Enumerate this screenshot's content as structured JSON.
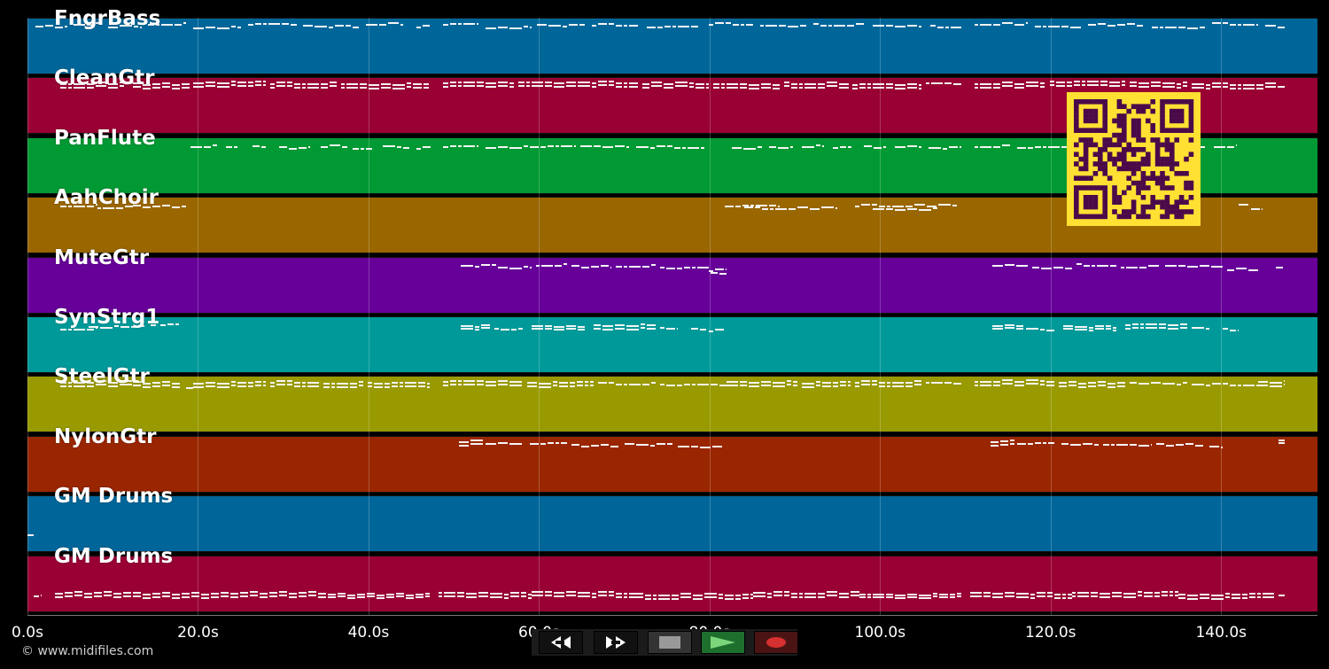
{
  "app": {
    "copyright": "© www.midifiles.com"
  },
  "tracks": [
    {
      "name": "FngrBass",
      "color": "#006699",
      "notes": [
        [
          40,
          76,
          8
        ],
        [
          83,
          115,
          5
        ],
        [
          122,
          160,
          8
        ],
        [
          167,
          210,
          5
        ],
        [
          218,
          272,
          9
        ],
        [
          280,
          335,
          6
        ],
        [
          342,
          405,
          8
        ],
        [
          413,
          455,
          5
        ],
        [
          470,
          485,
          8
        ],
        [
          500,
          540,
          5
        ],
        [
          548,
          600,
          9
        ],
        [
          606,
          660,
          7
        ],
        [
          668,
          720,
          6
        ],
        [
          730,
          790,
          9
        ],
        [
          800,
          850,
          5
        ],
        [
          858,
          910,
          8
        ],
        [
          918,
          975,
          6
        ],
        [
          985,
          1040,
          7
        ],
        [
          1050,
          1085,
          8
        ],
        [
          1100,
          1160,
          5
        ],
        [
          1168,
          1220,
          8
        ],
        [
          1228,
          1290,
          6
        ],
        [
          1300,
          1360,
          9
        ],
        [
          1368,
          1420,
          5
        ],
        [
          1428,
          1450,
          8
        ]
      ]
    },
    {
      "name": "CleanGtr",
      "color": "#990033",
      "notes": [
        [
          68,
          140,
          5
        ],
        [
          68,
          140,
          9
        ],
        [
          150,
          215,
          6
        ],
        [
          150,
          215,
          10
        ],
        [
          218,
          300,
          4
        ],
        [
          218,
          300,
          8
        ],
        [
          305,
          380,
          5
        ],
        [
          305,
          380,
          9
        ],
        [
          385,
          485,
          6
        ],
        [
          385,
          485,
          10
        ],
        [
          500,
          580,
          4
        ],
        [
          500,
          580,
          8
        ],
        [
          585,
          650,
          5
        ],
        [
          585,
          650,
          9
        ],
        [
          652,
          720,
          4
        ],
        [
          652,
          720,
          8
        ],
        [
          725,
          800,
          5
        ],
        [
          725,
          800,
          9
        ],
        [
          805,
          880,
          6
        ],
        [
          805,
          880,
          10
        ],
        [
          885,
          960,
          5
        ],
        [
          885,
          960,
          9
        ],
        [
          962,
          1040,
          6
        ],
        [
          962,
          1040,
          10
        ],
        [
          1045,
          1085,
          5
        ],
        [
          1100,
          1180,
          5
        ],
        [
          1100,
          1180,
          9
        ],
        [
          1185,
          1270,
          4
        ],
        [
          1185,
          1270,
          8
        ],
        [
          1275,
          1340,
          5
        ],
        [
          1275,
          1340,
          9
        ],
        [
          1345,
          1440,
          6
        ],
        [
          1345,
          1440,
          10
        ],
        [
          1442,
          1450,
          8
        ]
      ]
    },
    {
      "name": "PanFlute",
      "color": "#009933",
      "notes": [
        [
          215,
          245,
          8
        ],
        [
          255,
          270,
          10
        ],
        [
          285,
          300,
          9
        ],
        [
          315,
          350,
          10
        ],
        [
          362,
          392,
          8
        ],
        [
          398,
          420,
          10
        ],
        [
          432,
          462,
          9
        ],
        [
          470,
          486,
          10
        ],
        [
          500,
          540,
          8
        ],
        [
          548,
          650,
          9
        ],
        [
          655,
          710,
          8
        ],
        [
          718,
          795,
          9
        ],
        [
          826,
          860,
          10
        ],
        [
          868,
          895,
          9
        ],
        [
          905,
          930,
          8
        ],
        [
          940,
          962,
          10
        ],
        [
          975,
          1000,
          9
        ],
        [
          1010,
          1040,
          8
        ],
        [
          1048,
          1085,
          10
        ],
        [
          1100,
          1140,
          8
        ],
        [
          1148,
          1230,
          9
        ],
        [
          1236,
          1290,
          8
        ],
        [
          1300,
          1360,
          9
        ],
        [
          1370,
          1396,
          8
        ]
      ]
    },
    {
      "name": "AahChoir",
      "color": "#996600",
      "notes": [
        [
          68,
          110,
          8
        ],
        [
          110,
          150,
          10
        ],
        [
          150,
          210,
          9
        ],
        [
          818,
          880,
          8
        ],
        [
          840,
          945,
          11
        ],
        [
          965,
          1080,
          8
        ],
        [
          985,
          1060,
          12
        ],
        [
          1398,
          1410,
          8
        ],
        [
          1412,
          1425,
          11
        ]
      ]
    },
    {
      "name": "MuteGtr",
      "color": "#660099",
      "notes": [
        [
          520,
          560,
          8
        ],
        [
          562,
          600,
          10
        ],
        [
          605,
          640,
          7
        ],
        [
          645,
          690,
          9
        ],
        [
          695,
          740,
          8
        ],
        [
          745,
          800,
          10
        ],
        [
          800,
          820,
          13
        ],
        [
          802,
          820,
          16
        ],
        [
          1120,
          1160,
          8
        ],
        [
          1165,
          1210,
          10
        ],
        [
          1215,
          1260,
          7
        ],
        [
          1265,
          1310,
          9
        ],
        [
          1315,
          1380,
          8
        ],
        [
          1385,
          1420,
          12
        ],
        [
          1440,
          1450,
          11
        ]
      ]
    },
    {
      "name": "SynStrg1",
      "color": "#009999",
      "notes": [
        [
          68,
          110,
          12
        ],
        [
          100,
          165,
          10
        ],
        [
          170,
          178,
          7
        ],
        [
          181,
          202,
          8
        ],
        [
          520,
          555,
          9
        ],
        [
          520,
          555,
          12
        ],
        [
          558,
          590,
          13
        ],
        [
          600,
          660,
          10
        ],
        [
          600,
          660,
          13
        ],
        [
          670,
          740,
          8
        ],
        [
          670,
          740,
          12
        ],
        [
          745,
          765,
          11
        ],
        [
          780,
          797,
          13
        ],
        [
          800,
          818,
          14
        ],
        [
          1120,
          1155,
          9
        ],
        [
          1120,
          1155,
          12
        ],
        [
          1158,
          1190,
          13
        ],
        [
          1200,
          1260,
          10
        ],
        [
          1200,
          1260,
          13
        ],
        [
          1270,
          1340,
          8
        ],
        [
          1270,
          1340,
          12
        ],
        [
          1345,
          1365,
          11
        ],
        [
          1380,
          1398,
          13
        ]
      ]
    },
    {
      "name": "SteelGtr",
      "color": "#999900",
      "notes": [
        [
          68,
          150,
          5
        ],
        [
          68,
          150,
          9
        ],
        [
          150,
          205,
          6
        ],
        [
          150,
          205,
          10
        ],
        [
          210,
          218,
          13
        ],
        [
          218,
          300,
          6
        ],
        [
          218,
          300,
          10
        ],
        [
          305,
          360,
          5
        ],
        [
          305,
          360,
          9
        ],
        [
          365,
          410,
          6
        ],
        [
          365,
          410,
          10
        ],
        [
          415,
          485,
          6
        ],
        [
          415,
          485,
          10
        ],
        [
          500,
          590,
          4
        ],
        [
          500,
          590,
          8
        ],
        [
          595,
          670,
          6
        ],
        [
          595,
          670,
          10
        ],
        [
          675,
          740,
          7
        ],
        [
          745,
          820,
          8
        ],
        [
          820,
          900,
          5
        ],
        [
          820,
          900,
          9
        ],
        [
          905,
          960,
          6
        ],
        [
          905,
          960,
          10
        ],
        [
          965,
          1040,
          5
        ],
        [
          965,
          1040,
          9
        ],
        [
          1045,
          1085,
          6
        ],
        [
          1100,
          1190,
          4
        ],
        [
          1100,
          1190,
          8
        ],
        [
          1195,
          1270,
          6
        ],
        [
          1195,
          1270,
          10
        ],
        [
          1275,
          1340,
          7
        ],
        [
          1345,
          1420,
          8
        ],
        [
          1420,
          1450,
          5
        ],
        [
          1420,
          1450,
          9
        ]
      ]
    },
    {
      "name": "NylonGtr",
      "color": "#992600",
      "notes": [
        [
          518,
          545,
          4
        ],
        [
          518,
          545,
          8
        ],
        [
          548,
          590,
          6
        ],
        [
          598,
          640,
          7
        ],
        [
          645,
          700,
          9
        ],
        [
          705,
          760,
          8
        ],
        [
          765,
          817,
          11
        ],
        [
          1118,
          1145,
          4
        ],
        [
          1118,
          1145,
          8
        ],
        [
          1148,
          1190,
          6
        ],
        [
          1198,
          1240,
          7
        ],
        [
          1245,
          1300,
          9
        ],
        [
          1305,
          1360,
          8
        ],
        [
          1365,
          1380,
          11
        ],
        [
          1443,
          1450,
          4
        ],
        [
          1443,
          1450,
          7
        ]
      ]
    },
    {
      "name": "GM Drums",
      "color": "#006699",
      "notes": [
        [
          31,
          38,
          43
        ]
      ]
    },
    {
      "name": "GM Drums",
      "color": "#990033",
      "notes": [
        [
          38,
          47,
          43
        ],
        [
          62,
          150,
          40
        ],
        [
          62,
          150,
          44
        ],
        [
          150,
          260,
          41
        ],
        [
          150,
          260,
          45
        ],
        [
          260,
          370,
          40
        ],
        [
          260,
          370,
          44
        ],
        [
          370,
          485,
          42
        ],
        [
          370,
          485,
          45
        ],
        [
          495,
          600,
          41
        ],
        [
          495,
          600,
          45
        ],
        [
          600,
          720,
          40
        ],
        [
          600,
          720,
          44
        ],
        [
          720,
          850,
          42
        ],
        [
          720,
          850,
          46
        ],
        [
          850,
          970,
          40
        ],
        [
          850,
          970,
          44
        ],
        [
          970,
          1085,
          42
        ],
        [
          970,
          1085,
          45
        ],
        [
          1095,
          1210,
          41
        ],
        [
          1095,
          1210,
          45
        ],
        [
          1210,
          1330,
          40
        ],
        [
          1210,
          1330,
          44
        ],
        [
          1330,
          1440,
          42
        ],
        [
          1330,
          1440,
          46
        ],
        [
          1443,
          1450,
          44
        ]
      ]
    }
  ],
  "timeline": {
    "ticks": [
      {
        "label": "0.0s",
        "seconds": 0
      },
      {
        "label": "20.0s",
        "seconds": 20
      },
      {
        "label": "40.0s",
        "seconds": 40
      },
      {
        "label": "60.0s",
        "seconds": 60
      },
      {
        "label": "80.0s",
        "seconds": 80
      },
      {
        "label": "100.0s",
        "seconds": 100
      },
      {
        "label": "120.0s",
        "seconds": 120
      },
      {
        "label": "140.0s",
        "seconds": 140
      }
    ],
    "max_seconds": 151.3
  },
  "transport": {
    "buttons": [
      {
        "name": "rewind-button",
        "icon": "rewind-icon",
        "bg": "#111111",
        "color": "#ffffff"
      },
      {
        "name": "fast-forward-button",
        "icon": "fast-forward-icon",
        "bg": "#111111",
        "color": "#ffffff"
      },
      {
        "name": "stop-button",
        "icon": "stop-icon",
        "bg": "#333333",
        "color": "#999999"
      },
      {
        "name": "play-button",
        "icon": "play-icon",
        "bg": "#1e6e2e",
        "color": "#7bd67b"
      },
      {
        "name": "record-button",
        "icon": "record-icon",
        "bg": "#4a1414",
        "color": "#d63030"
      }
    ]
  },
  "qr": {
    "icon": "qr-code-icon",
    "bg": "#ffe033",
    "fg": "#4a0a4a"
  }
}
